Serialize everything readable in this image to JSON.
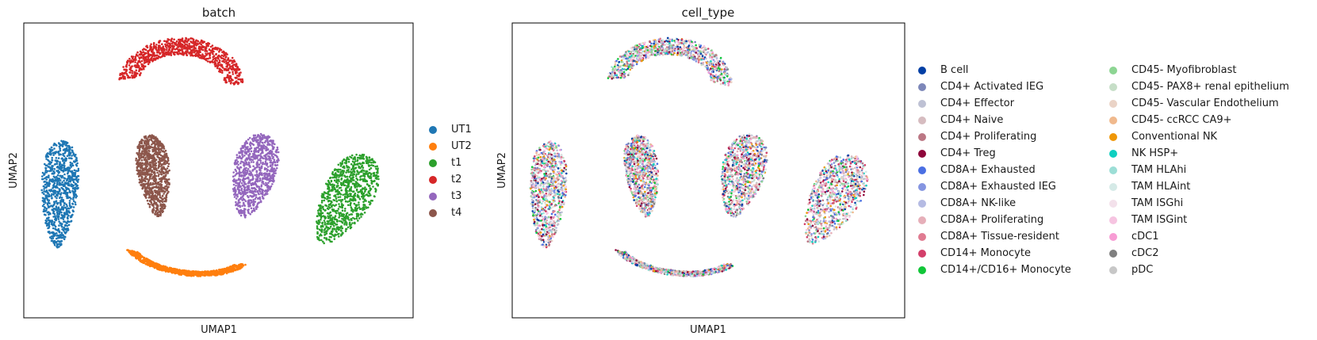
{
  "chart_data": [
    {
      "type": "scatter",
      "title": "batch",
      "xlabel": "UMAP1",
      "ylabel": "UMAP2",
      "grid": false,
      "legend_placement": "right",
      "series": [
        {
          "name": "UT1",
          "color": "#1f77b4"
        },
        {
          "name": "UT2",
          "color": "#ff7f0e"
        },
        {
          "name": "t1",
          "color": "#2ca02c"
        },
        {
          "name": "t2",
          "color": "#d62728"
        },
        {
          "name": "t3",
          "color": "#9467bd"
        },
        {
          "name": "t4",
          "color": "#8c564b"
        }
      ]
    },
    {
      "type": "scatter",
      "title": "cell_type",
      "xlabel": "UMAP1",
      "ylabel": "UMAP2",
      "grid": false,
      "legend_placement": "right",
      "series": [
        {
          "name": "B cell",
          "color": "#023fa5"
        },
        {
          "name": "CD4+ Activated IEG",
          "color": "#7d87b9"
        },
        {
          "name": "CD4+ Effector",
          "color": "#bec1d4"
        },
        {
          "name": "CD4+ Naive",
          "color": "#d6bcc0"
        },
        {
          "name": "CD4+ Proliferating",
          "color": "#bb7784"
        },
        {
          "name": "CD4+ Treg",
          "color": "#8e063b"
        },
        {
          "name": "CD8A+ Exhausted",
          "color": "#4a6fe3"
        },
        {
          "name": "CD8A+ Exhausted IEG",
          "color": "#8595e1"
        },
        {
          "name": "CD8A+ NK-like",
          "color": "#b5bbe3"
        },
        {
          "name": "CD8A+ Proliferating",
          "color": "#e6afb9"
        },
        {
          "name": "CD8A+ Tissue-resident",
          "color": "#e07b91"
        },
        {
          "name": "CD14+ Monocyte",
          "color": "#d33f6a"
        },
        {
          "name": "CD14+/CD16+ Monocyte",
          "color": "#11c638"
        },
        {
          "name": "CD45- Myofibroblast",
          "color": "#8dd593"
        },
        {
          "name": "CD45- PAX8+ renal epithelium",
          "color": "#c6dec7"
        },
        {
          "name": "CD45- Vascular Endothelium",
          "color": "#ead3c6"
        },
        {
          "name": "CD45- ccRCC CA9+",
          "color": "#f0b98d"
        },
        {
          "name": "Conventional NK",
          "color": "#ef9708"
        },
        {
          "name": "NK HSP+",
          "color": "#0fcfc0"
        },
        {
          "name": "TAM HLAhi",
          "color": "#9cded6"
        },
        {
          "name": "TAM HLAint",
          "color": "#d5eae7"
        },
        {
          "name": "TAM ISGhi",
          "color": "#f3e1eb"
        },
        {
          "name": "TAM ISGint",
          "color": "#f6c4e1"
        },
        {
          "name": "cDC1",
          "color": "#f79cd4"
        },
        {
          "name": "cDC2",
          "color": "#7f7f7f"
        },
        {
          "name": "pDC",
          "color": "#c7c7c7"
        }
      ]
    }
  ]
}
